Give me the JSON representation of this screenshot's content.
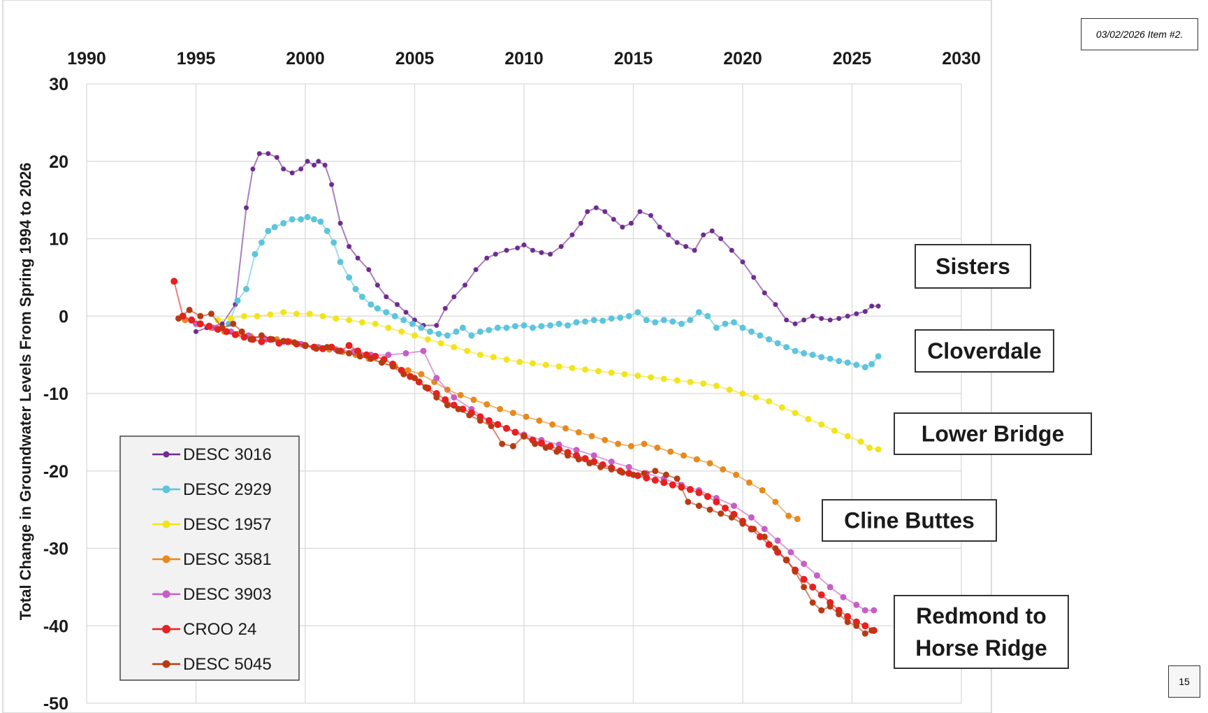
{
  "header_note": "03/02/2026 Item #2.",
  "page_number": "15",
  "chart_data": {
    "type": "line",
    "title": "",
    "xlabel": "",
    "ylabel": "Total Change in Groundwater Levels From Spring 1994 to 2026",
    "xlim": [
      1990,
      2030
    ],
    "ylim": [
      -50,
      30
    ],
    "x_ticks": [
      "1990",
      "1995",
      "2000",
      "2005",
      "2010",
      "2015",
      "2020",
      "2025",
      "2030"
    ],
    "y_ticks": [
      "30",
      "20",
      "10",
      "0",
      "-10",
      "-20",
      "-30",
      "-40",
      "-50"
    ],
    "x_axis_position": "top",
    "grid": true,
    "legend_position": "bottom-left",
    "series": [
      {
        "name": "DESC 3016",
        "color": "#6f2b8f",
        "marker_size": 3.5,
        "x": [
          1995.0,
          1995.5,
          1996.2,
          1996.8,
          1997.3,
          1997.6,
          1997.9,
          1998.3,
          1998.7,
          1999.0,
          1999.4,
          1999.8,
          2000.1,
          2000.4,
          2000.6,
          2000.9,
          2001.2,
          2001.6,
          2002.0,
          2002.4,
          2002.9,
          2003.3,
          2003.7,
          2004.2,
          2004.6,
          2005.0,
          2005.4,
          2006.0,
          2006.4,
          2006.8,
          2007.3,
          2007.8,
          2008.3,
          2008.7,
          2009.2,
          2009.7,
          2010.0,
          2010.4,
          2010.8,
          2011.2,
          2011.7,
          2012.2,
          2012.6,
          2012.9,
          2013.3,
          2013.7,
          2014.1,
          2014.5,
          2014.9,
          2015.3,
          2015.8,
          2016.2,
          2016.6,
          2017.0,
          2017.4,
          2017.8,
          2018.2,
          2018.6,
          2019.0,
          2019.5,
          2020.0,
          2020.5,
          2021.0,
          2021.5,
          2022.0,
          2022.4,
          2022.8,
          2023.2,
          2023.6,
          2024.0,
          2024.4,
          2024.8,
          2025.2,
          2025.6,
          2025.9,
          2026.2
        ],
        "y": [
          -2.0,
          -1.5,
          -1.0,
          1.5,
          14,
          19,
          21,
          21,
          20.5,
          19,
          18.5,
          19,
          20,
          19.5,
          20,
          19.5,
          17,
          12,
          9,
          7.5,
          6,
          4,
          2.5,
          1.5,
          0.5,
          -0.5,
          -1.2,
          -1.2,
          1.0,
          2.5,
          4.0,
          6.0,
          7.5,
          8.0,
          8.5,
          8.8,
          9.2,
          8.5,
          8.2,
          8.0,
          9.0,
          10.5,
          12.0,
          13.5,
          14.0,
          13.5,
          12.5,
          11.5,
          12.0,
          13.5,
          13.0,
          11.5,
          10.5,
          9.5,
          9.0,
          8.5,
          10.5,
          11.0,
          10.0,
          8.5,
          7.0,
          5.0,
          3.0,
          1.5,
          -0.5,
          -1.0,
          -0.5,
          0.0,
          -0.3,
          -0.5,
          -0.3,
          0.0,
          0.3,
          0.6,
          1.3,
          1.3
        ]
      },
      {
        "name": "DESC 2929",
        "color": "#5cc5dc",
        "marker_size": 4.5,
        "x": [
          1996.5,
          1996.9,
          1997.3,
          1997.7,
          1998.0,
          1998.3,
          1998.6,
          1999.0,
          1999.4,
          1999.8,
          2000.1,
          2000.4,
          2000.7,
          2001.0,
          2001.3,
          2001.6,
          2002.0,
          2002.3,
          2002.6,
          2003.0,
          2003.3,
          2003.7,
          2004.1,
          2004.5,
          2004.9,
          2005.3,
          2005.7,
          2006.1,
          2006.5,
          2006.9,
          2007.2,
          2007.6,
          2008.0,
          2008.4,
          2008.8,
          2009.2,
          2009.6,
          2010.0,
          2010.4,
          2010.8,
          2011.2,
          2011.6,
          2012.0,
          2012.4,
          2012.8,
          2013.2,
          2013.6,
          2014.0,
          2014.4,
          2014.8,
          2015.2,
          2015.6,
          2016.0,
          2016.4,
          2016.8,
          2017.2,
          2017.6,
          2018.0,
          2018.4,
          2018.8,
          2019.2,
          2019.6,
          2020.0,
          2020.4,
          2020.8,
          2021.2,
          2021.6,
          2022.0,
          2022.4,
          2022.8,
          2023.2,
          2023.6,
          2024.0,
          2024.4,
          2024.8,
          2025.2,
          2025.6,
          2025.9,
          2026.2
        ],
        "y": [
          -1,
          2,
          3.5,
          8,
          9.5,
          11,
          11.5,
          12,
          12.5,
          12.5,
          12.8,
          12.5,
          12.2,
          11,
          9.5,
          7,
          5,
          3.5,
          2.5,
          1.5,
          1.0,
          0.5,
          0.0,
          -0.5,
          -1.0,
          -1.5,
          -2.0,
          -2.3,
          -2.5,
          -2.0,
          -1.5,
          -2.5,
          -2.0,
          -1.8,
          -1.5,
          -1.5,
          -1.3,
          -1.2,
          -1.5,
          -1.3,
          -1.2,
          -1.0,
          -1.2,
          -0.8,
          -0.7,
          -0.5,
          -0.6,
          -0.3,
          -0.2,
          0.0,
          0.5,
          -0.5,
          -0.8,
          -0.5,
          -0.7,
          -1.0,
          -0.5,
          0.5,
          0.0,
          -1.5,
          -1.0,
          -0.8,
          -1.5,
          -2.0,
          -2.5,
          -3.0,
          -3.5,
          -4.0,
          -4.5,
          -4.8,
          -5.0,
          -5.3,
          -5.5,
          -5.8,
          -6.0,
          -6.3,
          -6.6,
          -6.2,
          -5.2
        ]
      },
      {
        "name": "DESC 1957",
        "color": "#f2e41c",
        "marker_size": 4.5,
        "x": [
          1996.0,
          1996.6,
          1997.2,
          1997.8,
          1998.4,
          1999.0,
          1999.6,
          2000.2,
          2000.8,
          2001.4,
          2002.0,
          2002.6,
          2003.2,
          2003.8,
          2004.4,
          2005.0,
          2005.6,
          2006.2,
          2006.8,
          2007.4,
          2008.0,
          2008.6,
          2009.2,
          2009.8,
          2010.4,
          2011.0,
          2011.6,
          2012.2,
          2012.8,
          2013.4,
          2014.0,
          2014.6,
          2015.2,
          2015.8,
          2016.4,
          2017.0,
          2017.6,
          2018.2,
          2018.8,
          2019.4,
          2020.0,
          2020.6,
          2021.2,
          2021.8,
          2022.4,
          2023.0,
          2023.6,
          2024.2,
          2024.8,
          2025.4,
          2025.8,
          2026.2
        ],
        "y": [
          -0.5,
          -0.3,
          0.0,
          0.0,
          0.2,
          0.5,
          0.3,
          0.3,
          0.0,
          -0.3,
          -0.5,
          -0.8,
          -1.0,
          -1.5,
          -2.0,
          -2.5,
          -3.0,
          -3.5,
          -4.0,
          -4.5,
          -5.0,
          -5.3,
          -5.6,
          -5.9,
          -6.1,
          -6.3,
          -6.5,
          -6.7,
          -6.9,
          -7.1,
          -7.3,
          -7.5,
          -7.7,
          -7.9,
          -8.1,
          -8.3,
          -8.5,
          -8.7,
          -9.0,
          -9.5,
          -10.0,
          -10.5,
          -11.0,
          -11.8,
          -12.5,
          -13.3,
          -14.0,
          -14.8,
          -15.5,
          -16.2,
          -17.0,
          -17.2
        ]
      },
      {
        "name": "DESC 3581",
        "color": "#e8891c",
        "marker_size": 4.5,
        "x": [
          1994.5,
          1995.1,
          1995.7,
          1996.3,
          1996.9,
          1997.5,
          1998.1,
          1998.7,
          1999.3,
          1999.9,
          2000.5,
          2001.1,
          2001.7,
          2002.3,
          2002.9,
          2003.5,
          2004.1,
          2004.7,
          2005.3,
          2005.9,
          2006.5,
          2007.1,
          2007.7,
          2008.3,
          2008.9,
          2009.5,
          2010.1,
          2010.7,
          2011.3,
          2011.9,
          2012.5,
          2013.1,
          2013.7,
          2014.3,
          2014.9,
          2015.5,
          2016.1,
          2016.7,
          2017.3,
          2017.9,
          2018.5,
          2019.1,
          2019.7,
          2020.3,
          2020.9,
          2021.5,
          2022.1,
          2022.5
        ],
        "y": [
          -0.5,
          -1.0,
          -1.5,
          -2.0,
          -2.3,
          -2.6,
          -2.8,
          -3.0,
          -3.3,
          -3.7,
          -4.0,
          -4.3,
          -4.6,
          -5.0,
          -5.5,
          -6.0,
          -6.5,
          -7.0,
          -7.5,
          -8.5,
          -9.5,
          -10.2,
          -10.8,
          -11.4,
          -12.0,
          -12.5,
          -13.0,
          -13.5,
          -14.0,
          -14.5,
          -15.0,
          -15.5,
          -16.0,
          -16.5,
          -16.8,
          -16.5,
          -17.0,
          -17.5,
          -18.0,
          -18.5,
          -19.0,
          -19.8,
          -20.5,
          -21.5,
          -22.5,
          -24.0,
          -25.8,
          -26.2
        ]
      },
      {
        "name": "DESC 3903",
        "color": "#c65fc5",
        "marker_size": 4.5,
        "x": [
          1995.0,
          1995.8,
          1996.6,
          1997.4,
          1998.2,
          1999.0,
          1999.8,
          2000.6,
          2001.4,
          2002.2,
          2003.0,
          2003.8,
          2004.6,
          2005.4,
          2006.0,
          2006.8,
          2007.6,
          2008.4,
          2009.2,
          2010.0,
          2010.8,
          2011.6,
          2012.4,
          2013.2,
          2014.0,
          2014.8,
          2015.6,
          2016.4,
          2017.2,
          2018.0,
          2018.8,
          2019.6,
          2020.4,
          2021.0,
          2021.6,
          2022.2,
          2022.8,
          2023.4,
          2024.0,
          2024.6,
          2025.2,
          2025.6,
          2026.0
        ],
        "y": [
          -1.0,
          -1.5,
          -2.0,
          -2.5,
          -3.0,
          -3.3,
          -3.6,
          -4.0,
          -4.3,
          -4.6,
          -5.0,
          -5.0,
          -4.8,
          -4.5,
          -8.0,
          -10.5,
          -12.0,
          -13.5,
          -14.5,
          -15.3,
          -16.0,
          -16.6,
          -17.3,
          -18.0,
          -18.8,
          -19.5,
          -20.3,
          -21.0,
          -21.8,
          -22.5,
          -23.5,
          -24.5,
          -26.0,
          -27.5,
          -29.0,
          -30.5,
          -32.0,
          -33.5,
          -35.0,
          -36.3,
          -37.3,
          -38.0,
          -38.0
        ]
      },
      {
        "name": "CROO 24",
        "color": "#e82020",
        "marker_size": 5,
        "x": [
          1994.0,
          1994.4,
          1994.8,
          1995.2,
          1995.6,
          1996.0,
          1996.4,
          1996.8,
          1997.2,
          1997.6,
          1998.0,
          1998.4,
          1998.8,
          1999.2,
          1999.6,
          2000.0,
          2000.4,
          2000.8,
          2001.2,
          2001.6,
          2002.0,
          2002.4,
          2002.8,
          2003.2,
          2003.6,
          2004.0,
          2004.4,
          2004.8,
          2005.2,
          2005.6,
          2006.0,
          2006.4,
          2006.8,
          2007.2,
          2007.6,
          2008.0,
          2008.4,
          2008.8,
          2009.2,
          2009.6,
          2010.0,
          2010.4,
          2010.8,
          2011.2,
          2011.6,
          2012.0,
          2012.4,
          2012.8,
          2013.2,
          2013.6,
          2014.0,
          2014.4,
          2014.8,
          2015.2,
          2015.6,
          2016.0,
          2016.4,
          2016.8,
          2017.2,
          2017.6,
          2018.0,
          2018.4,
          2018.8,
          2019.2,
          2019.6,
          2020.0,
          2020.4,
          2020.8,
          2021.2,
          2021.6,
          2022.0,
          2022.4,
          2022.8,
          2023.2,
          2023.6,
          2024.0,
          2024.4,
          2024.8,
          2025.2,
          2025.6,
          2026.0
        ],
        "y": [
          4.5,
          0.0,
          -0.5,
          -1.0,
          -1.3,
          -1.7,
          -2.0,
          -2.4,
          -2.7,
          -3.0,
          -3.3,
          -3.0,
          -3.5,
          -3.3,
          -3.6,
          -3.8,
          -4.0,
          -4.2,
          -4.0,
          -4.5,
          -3.8,
          -4.5,
          -5.0,
          -5.2,
          -5.6,
          -6.2,
          -7.0,
          -7.8,
          -8.5,
          -9.3,
          -10.0,
          -10.8,
          -11.5,
          -12.0,
          -12.5,
          -13.0,
          -13.5,
          -14.0,
          -14.5,
          -15.0,
          -15.5,
          -16.0,
          -16.4,
          -16.8,
          -17.2,
          -17.6,
          -18.0,
          -18.4,
          -18.8,
          -19.2,
          -19.6,
          -20.0,
          -20.3,
          -20.6,
          -20.9,
          -21.2,
          -21.5,
          -21.8,
          -22.1,
          -22.4,
          -22.8,
          -23.3,
          -24.0,
          -24.8,
          -25.6,
          -26.5,
          -27.5,
          -28.5,
          -29.5,
          -30.5,
          -31.5,
          -32.8,
          -34.0,
          -35.0,
          -36.0,
          -37.0,
          -38.0,
          -38.8,
          -39.5,
          -40.0,
          -40.6
        ]
      },
      {
        "name": "DESC 5045",
        "color": "#b83a12",
        "marker_size": 4.5,
        "x": [
          1994.2,
          1994.7,
          1995.2,
          1995.7,
          1996.2,
          1996.7,
          1997.1,
          1997.5,
          1998.0,
          1998.5,
          1999.0,
          1999.5,
          2000.0,
          2000.5,
          2001.0,
          2001.5,
          2002.0,
          2002.5,
          2003.0,
          2003.5,
          2004.0,
          2004.5,
          2005.0,
          2005.5,
          2006.0,
          2006.5,
          2007.0,
          2007.5,
          2008.0,
          2008.5,
          2009.0,
          2009.5,
          2010.0,
          2010.5,
          2011.0,
          2011.5,
          2012.0,
          2012.5,
          2013.0,
          2013.5,
          2014.0,
          2014.5,
          2015.0,
          2015.5,
          2016.0,
          2016.5,
          2017.0,
          2017.5,
          2018.0,
          2018.5,
          2019.0,
          2019.5,
          2020.0,
          2020.5,
          2021.0,
          2021.5,
          2022.0,
          2022.4,
          2022.8,
          2023.2,
          2023.6,
          2024.0,
          2024.4,
          2024.8,
          2025.2,
          2025.6,
          2025.9
        ],
        "y": [
          -0.3,
          0.8,
          0.0,
          0.3,
          -1.5,
          -1.0,
          -2.0,
          -3.0,
          -2.5,
          -3.0,
          -3.2,
          -3.4,
          -3.8,
          -4.2,
          -4.0,
          -4.5,
          -4.8,
          -5.2,
          -5.5,
          -6.0,
          -6.5,
          -7.5,
          -8.0,
          -9.2,
          -10.5,
          -11.5,
          -12.0,
          -12.8,
          -13.5,
          -14.2,
          -16.5,
          -16.8,
          -15.5,
          -16.5,
          -17.0,
          -17.5,
          -18.0,
          -18.5,
          -19.0,
          -19.5,
          -19.8,
          -20.2,
          -20.5,
          -20.3,
          -20.0,
          -20.5,
          -21.0,
          -24.0,
          -24.5,
          -25.0,
          -25.5,
          -26.0,
          -26.8,
          -27.5,
          -28.5,
          -30.0,
          -31.5,
          -33.0,
          -35.0,
          -37.0,
          -38.0,
          -37.5,
          -38.5,
          -39.5,
          -40.0,
          -41.0,
          -40.6
        ]
      }
    ],
    "annotations": [
      {
        "label_lines": [
          "Sisters"
        ]
      },
      {
        "label_lines": [
          "Cloverdale"
        ]
      },
      {
        "label_lines": [
          "Lower Bridge"
        ]
      },
      {
        "label_lines": [
          "Cline Buttes"
        ]
      },
      {
        "label_lines": [
          "Redmond to",
          "Horse Ridge"
        ]
      }
    ]
  }
}
